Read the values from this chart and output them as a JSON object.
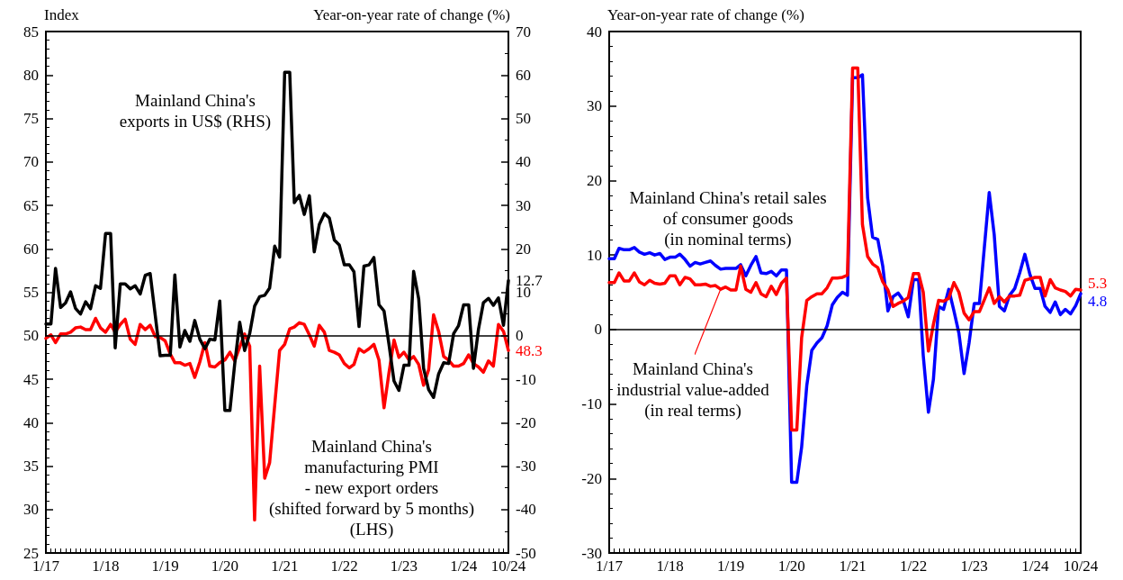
{
  "chart_data": [
    {
      "type": "line",
      "ylabel": "Index",
      "y2label": "Year-on-year rate of change (%)",
      "x": [
        "2017-01",
        "2017-02",
        "2017-03",
        "2017-04",
        "2017-05",
        "2017-06",
        "2017-07",
        "2017-08",
        "2017-09",
        "2017-10",
        "2017-11",
        "2017-12",
        "2018-01",
        "2018-02",
        "2018-03",
        "2018-04",
        "2018-05",
        "2018-06",
        "2018-07",
        "2018-08",
        "2018-09",
        "2018-10",
        "2018-11",
        "2018-12",
        "2019-01",
        "2019-02",
        "2019-03",
        "2019-04",
        "2019-05",
        "2019-06",
        "2019-07",
        "2019-08",
        "2019-09",
        "2019-10",
        "2019-11",
        "2019-12",
        "2020-01",
        "2020-02",
        "2020-03",
        "2020-04",
        "2020-05",
        "2020-06",
        "2020-07",
        "2020-08",
        "2020-09",
        "2020-10",
        "2020-11",
        "2020-12",
        "2021-01",
        "2021-02",
        "2021-03",
        "2021-04",
        "2021-05",
        "2021-06",
        "2021-07",
        "2021-08",
        "2021-09",
        "2021-10",
        "2021-11",
        "2021-12",
        "2022-01",
        "2022-02",
        "2022-03",
        "2022-04",
        "2022-05",
        "2022-06",
        "2022-07",
        "2022-08",
        "2022-09",
        "2022-10",
        "2022-11",
        "2022-12",
        "2023-01",
        "2023-02",
        "2023-03",
        "2023-04",
        "2023-05",
        "2023-06",
        "2023-07",
        "2023-08",
        "2023-09",
        "2023-10",
        "2023-11",
        "2023-12",
        "2024-01",
        "2024-02",
        "2024-03",
        "2024-04",
        "2024-05",
        "2024-06",
        "2024-07",
        "2024-08",
        "2024-09",
        "2024-10"
      ],
      "xlim": [
        "2017-01",
        "2024-10"
      ],
      "xticks": [
        {
          "value": "2017-01",
          "label": "1/17"
        },
        {
          "value": "2018-01",
          "label": "1/18"
        },
        {
          "value": "2019-01",
          "label": "1/19"
        },
        {
          "value": "2020-01",
          "label": "1/20"
        },
        {
          "value": "2021-01",
          "label": "1/21"
        },
        {
          "value": "2022-01",
          "label": "1/22"
        },
        {
          "value": "2023-01",
          "label": "1/23"
        },
        {
          "value": "2024-01",
          "label": "1/24"
        },
        {
          "value": "2024-10",
          "label": "10/24"
        }
      ],
      "ylim": [
        25,
        85
      ],
      "yticks": [
        25,
        30,
        35,
        40,
        45,
        50,
        55,
        60,
        65,
        70,
        75,
        80,
        85
      ],
      "y2lim": [
        -50,
        70
      ],
      "y2ticks": [
        -50,
        -40,
        -30,
        -20,
        -10,
        0,
        10,
        20,
        30,
        40,
        50,
        60,
        70
      ],
      "marker": "none",
      "ref_lines": [
        {
          "axis": "y2",
          "value": 0,
          "color": "#000000"
        }
      ],
      "series": [
        {
          "name": "Mainland China's\nmanufacturing PMI\n- new export orders\n(shifted forward by 5 months)\n(LHS)",
          "color": "#ff0000",
          "values": [
            49.7,
            50.1,
            49.2,
            50.2,
            50.2,
            50.4,
            50.9,
            51.0,
            50.7,
            50.7,
            52.0,
            50.9,
            50.4,
            51.3,
            50.4,
            51.3,
            51.9,
            49.6,
            49.0,
            51.3,
            50.7,
            51.2,
            49.9,
            49.8,
            49.4,
            47.9,
            46.9,
            46.9,
            46.6,
            46.8,
            45.2,
            47.0,
            49.2,
            46.5,
            46.4,
            46.9,
            47.2,
            48.1,
            47.1,
            48.7,
            50.2,
            48.8,
            28.8,
            46.5,
            33.6,
            35.4,
            42.0,
            48.3,
            49.0,
            50.8,
            51.0,
            51.5,
            51.3,
            50.1,
            48.8,
            51.2,
            50.4,
            48.3,
            48.1,
            47.8,
            46.8,
            46.3,
            46.7,
            48.5,
            48.1,
            48.5,
            49.0,
            47.2,
            41.7,
            45.7,
            49.5,
            47.5,
            48.1,
            47.2,
            47.6,
            46.7,
            44.3,
            46.1,
            52.4,
            50.5,
            47.6,
            47.2,
            46.5,
            46.5,
            46.8,
            47.8,
            46.8,
            46.4,
            45.8,
            47.1,
            46.5,
            51.3,
            50.5,
            48.3
          ],
          "value_labels": [
            null,
            null,
            null,
            null,
            null,
            null,
            null,
            null,
            null,
            null,
            null,
            null,
            null,
            null,
            null,
            null,
            null,
            null,
            null,
            null,
            null,
            null,
            null,
            null,
            null,
            null,
            null,
            null,
            null,
            null,
            null,
            null,
            null,
            null,
            null,
            null,
            null,
            null,
            null,
            null,
            null,
            null,
            null,
            null,
            null,
            null,
            null,
            null,
            null,
            null,
            null,
            null,
            null,
            null,
            null,
            null,
            null,
            null,
            null,
            null,
            null,
            null,
            null,
            null,
            null,
            null,
            null,
            null,
            null,
            null,
            null,
            null,
            null,
            null,
            null,
            null,
            null,
            null,
            null,
            null,
            null,
            null,
            null,
            null,
            null,
            null,
            null,
            null,
            null,
            null,
            null,
            null,
            null,
            "48.3"
          ]
        },
        {
          "name": "Mainland China's\nexports in US$ (RHS)",
          "color": "#000000",
          "axis": "y2",
          "values": [
            2.7,
            2.7,
            15.5,
            6.5,
            7.5,
            10.1,
            6.3,
            5.0,
            7.8,
            6.2,
            11.5,
            10.9,
            23.5,
            23.5,
            -2.8,
            11.9,
            11.9,
            10.8,
            11.5,
            9.6,
            13.9,
            14.3,
            4.7,
            -4.6,
            -4.5,
            -4.5,
            14.0,
            -2.6,
            1.2,
            -1.3,
            3.5,
            -0.8,
            -3.0,
            -0.8,
            -1.0,
            8.0,
            -17.2,
            -17.2,
            -6.6,
            3.1,
            -3.4,
            0.5,
            6.8,
            9.0,
            9.3,
            11.0,
            20.6,
            18.1,
            60.6,
            60.6,
            30.6,
            32.3,
            27.9,
            32.2,
            19.3,
            25.6,
            28.1,
            27.1,
            22.0,
            20.9,
            16.3,
            16.3,
            14.7,
            2.1,
            16.0,
            16.3,
            18.0,
            7.1,
            5.7,
            -1.9,
            -10.4,
            -12.6,
            -6.8,
            -6.8,
            14.8,
            8.5,
            -7.5,
            -12.4,
            -14.2,
            -8.8,
            -6.2,
            -6.4,
            0.5,
            2.3,
            7.1,
            7.1,
            -7.5,
            1.5,
            7.6,
            8.6,
            7.0,
            8.7,
            2.4,
            12.7
          ],
          "value_labels": [
            null,
            null,
            null,
            null,
            null,
            null,
            null,
            null,
            null,
            null,
            null,
            null,
            null,
            null,
            null,
            null,
            null,
            null,
            null,
            null,
            null,
            null,
            null,
            null,
            null,
            null,
            null,
            null,
            null,
            null,
            null,
            null,
            null,
            null,
            null,
            null,
            null,
            null,
            null,
            null,
            null,
            null,
            null,
            null,
            null,
            null,
            null,
            null,
            null,
            null,
            null,
            null,
            null,
            null,
            null,
            null,
            null,
            null,
            null,
            null,
            null,
            null,
            null,
            null,
            null,
            null,
            null,
            null,
            null,
            null,
            null,
            null,
            null,
            null,
            null,
            null,
            null,
            null,
            null,
            null,
            null,
            null,
            null,
            null,
            null,
            null,
            null,
            null,
            null,
            null,
            null,
            null,
            null,
            "12.7"
          ]
        }
      ]
    },
    {
      "type": "line",
      "ylabel": "Year-on-year rate of change (%)",
      "x": [
        "2017-01",
        "2017-02",
        "2017-03",
        "2017-04",
        "2017-05",
        "2017-06",
        "2017-07",
        "2017-08",
        "2017-09",
        "2017-10",
        "2017-11",
        "2017-12",
        "2018-01",
        "2018-02",
        "2018-03",
        "2018-04",
        "2018-05",
        "2018-06",
        "2018-07",
        "2018-08",
        "2018-09",
        "2018-10",
        "2018-11",
        "2018-12",
        "2019-01",
        "2019-02",
        "2019-03",
        "2019-04",
        "2019-05",
        "2019-06",
        "2019-07",
        "2019-08",
        "2019-09",
        "2019-10",
        "2019-11",
        "2019-12",
        "2020-01",
        "2020-02",
        "2020-03",
        "2020-04",
        "2020-05",
        "2020-06",
        "2020-07",
        "2020-08",
        "2020-09",
        "2020-10",
        "2020-11",
        "2020-12",
        "2021-01",
        "2021-02",
        "2021-03",
        "2021-04",
        "2021-05",
        "2021-06",
        "2021-07",
        "2021-08",
        "2021-09",
        "2021-10",
        "2021-11",
        "2021-12",
        "2022-01",
        "2022-02",
        "2022-03",
        "2022-04",
        "2022-05",
        "2022-06",
        "2022-07",
        "2022-08",
        "2022-09",
        "2022-10",
        "2022-11",
        "2022-12",
        "2023-01",
        "2023-02",
        "2023-03",
        "2023-04",
        "2023-05",
        "2023-06",
        "2023-07",
        "2023-08",
        "2023-09",
        "2023-10",
        "2023-11",
        "2023-12",
        "2024-01",
        "2024-02",
        "2024-03",
        "2024-04",
        "2024-05",
        "2024-06",
        "2024-07",
        "2024-08",
        "2024-09",
        "2024-10"
      ],
      "xlim": [
        "2017-01",
        "2024-10"
      ],
      "xticks": [
        {
          "value": "2017-01",
          "label": "1/17"
        },
        {
          "value": "2018-01",
          "label": "1/18"
        },
        {
          "value": "2019-01",
          "label": "1/19"
        },
        {
          "value": "2020-01",
          "label": "1/20"
        },
        {
          "value": "2021-01",
          "label": "1/21"
        },
        {
          "value": "2022-01",
          "label": "1/22"
        },
        {
          "value": "2023-01",
          "label": "1/23"
        },
        {
          "value": "2024-01",
          "label": "1/24"
        },
        {
          "value": "2024-10",
          "label": "10/24"
        }
      ],
      "ylim": [
        -30,
        40
      ],
      "yticks": [
        -30,
        -20,
        -10,
        0,
        10,
        20,
        30,
        40
      ],
      "marker": "none",
      "ref_lines": [
        {
          "axis": "y",
          "value": 0,
          "color": "#000000"
        }
      ],
      "series": [
        {
          "name": "Mainland China's retail sales\nof consumer goods\n(in nominal terms)",
          "color": "#0000ff",
          "values": [
            9.5,
            9.5,
            10.9,
            10.7,
            10.7,
            11.0,
            10.4,
            10.1,
            10.3,
            10.0,
            10.2,
            9.4,
            9.7,
            9.7,
            10.1,
            9.4,
            8.5,
            9.0,
            8.8,
            9.0,
            9.2,
            8.6,
            8.1,
            8.2,
            8.2,
            8.2,
            8.7,
            7.2,
            8.6,
            9.8,
            7.6,
            7.5,
            7.8,
            7.2,
            8.0,
            8.0,
            -20.5,
            -20.5,
            -15.8,
            -7.5,
            -2.8,
            -1.8,
            -1.1,
            0.5,
            3.3,
            4.3,
            5.0,
            4.6,
            33.8,
            33.8,
            34.2,
            17.7,
            12.4,
            12.1,
            8.5,
            2.5,
            4.4,
            4.9,
            3.9,
            1.7,
            6.7,
            6.7,
            -3.5,
            -11.1,
            -6.7,
            3.1,
            2.7,
            5.4,
            2.5,
            -0.5,
            -5.9,
            -1.8,
            3.5,
            3.5,
            10.6,
            18.4,
            12.7,
            3.1,
            2.5,
            4.6,
            5.5,
            7.6,
            10.1,
            7.4,
            5.5,
            5.5,
            3.1,
            2.3,
            3.7,
            2.0,
            2.7,
            2.1,
            3.2,
            4.8
          ],
          "value_labels": [
            null,
            null,
            null,
            null,
            null,
            null,
            null,
            null,
            null,
            null,
            null,
            null,
            null,
            null,
            null,
            null,
            null,
            null,
            null,
            null,
            null,
            null,
            null,
            null,
            null,
            null,
            null,
            null,
            null,
            null,
            null,
            null,
            null,
            null,
            null,
            null,
            null,
            null,
            null,
            null,
            null,
            null,
            null,
            null,
            null,
            null,
            null,
            null,
            null,
            null,
            null,
            null,
            null,
            null,
            null,
            null,
            null,
            null,
            null,
            null,
            null,
            null,
            null,
            null,
            null,
            null,
            null,
            null,
            null,
            null,
            null,
            null,
            null,
            null,
            null,
            null,
            null,
            null,
            null,
            null,
            null,
            null,
            null,
            null,
            null,
            null,
            null,
            null,
            null,
            null,
            null,
            null,
            null,
            "4.8"
          ]
        },
        {
          "name": "Mainland China's\nindustrial value-added\n(in real terms)",
          "color": "#ff0000",
          "values": [
            6.3,
            6.3,
            7.6,
            6.5,
            6.5,
            7.6,
            6.4,
            6.0,
            6.6,
            6.2,
            6.1,
            6.2,
            7.2,
            7.2,
            6.0,
            7.0,
            6.8,
            6.0,
            6.0,
            6.1,
            5.8,
            5.9,
            5.4,
            5.7,
            5.3,
            5.3,
            8.5,
            5.4,
            5.0,
            6.3,
            4.8,
            4.4,
            5.8,
            4.7,
            6.2,
            6.9,
            -13.5,
            -13.5,
            -1.1,
            3.9,
            4.4,
            4.8,
            4.8,
            5.6,
            6.9,
            6.9,
            7.0,
            7.3,
            35.1,
            35.1,
            14.1,
            9.8,
            8.8,
            8.3,
            6.4,
            5.3,
            3.1,
            3.5,
            3.8,
            4.3,
            7.5,
            7.5,
            5.0,
            -2.9,
            0.7,
            3.9,
            3.8,
            4.2,
            6.3,
            5.0,
            2.2,
            1.3,
            2.4,
            2.4,
            3.9,
            5.6,
            3.5,
            4.4,
            3.7,
            4.5,
            4.5,
            4.6,
            6.6,
            6.8,
            7.0,
            7.0,
            4.5,
            6.7,
            5.6,
            5.3,
            5.1,
            4.5,
            5.4,
            5.3
          ],
          "value_labels": [
            null,
            null,
            null,
            null,
            null,
            null,
            null,
            null,
            null,
            null,
            null,
            null,
            null,
            null,
            null,
            null,
            null,
            null,
            null,
            null,
            null,
            null,
            null,
            null,
            null,
            null,
            null,
            null,
            null,
            null,
            null,
            null,
            null,
            null,
            null,
            null,
            null,
            null,
            null,
            null,
            null,
            null,
            null,
            null,
            null,
            null,
            null,
            null,
            null,
            null,
            null,
            null,
            null,
            null,
            null,
            null,
            null,
            null,
            null,
            null,
            null,
            null,
            null,
            null,
            null,
            null,
            null,
            null,
            null,
            null,
            null,
            null,
            null,
            null,
            null,
            null,
            null,
            null,
            null,
            null,
            null,
            null,
            null,
            null,
            null,
            null,
            null,
            null,
            null,
            null,
            null,
            null,
            null,
            "5.3"
          ]
        }
      ]
    }
  ]
}
